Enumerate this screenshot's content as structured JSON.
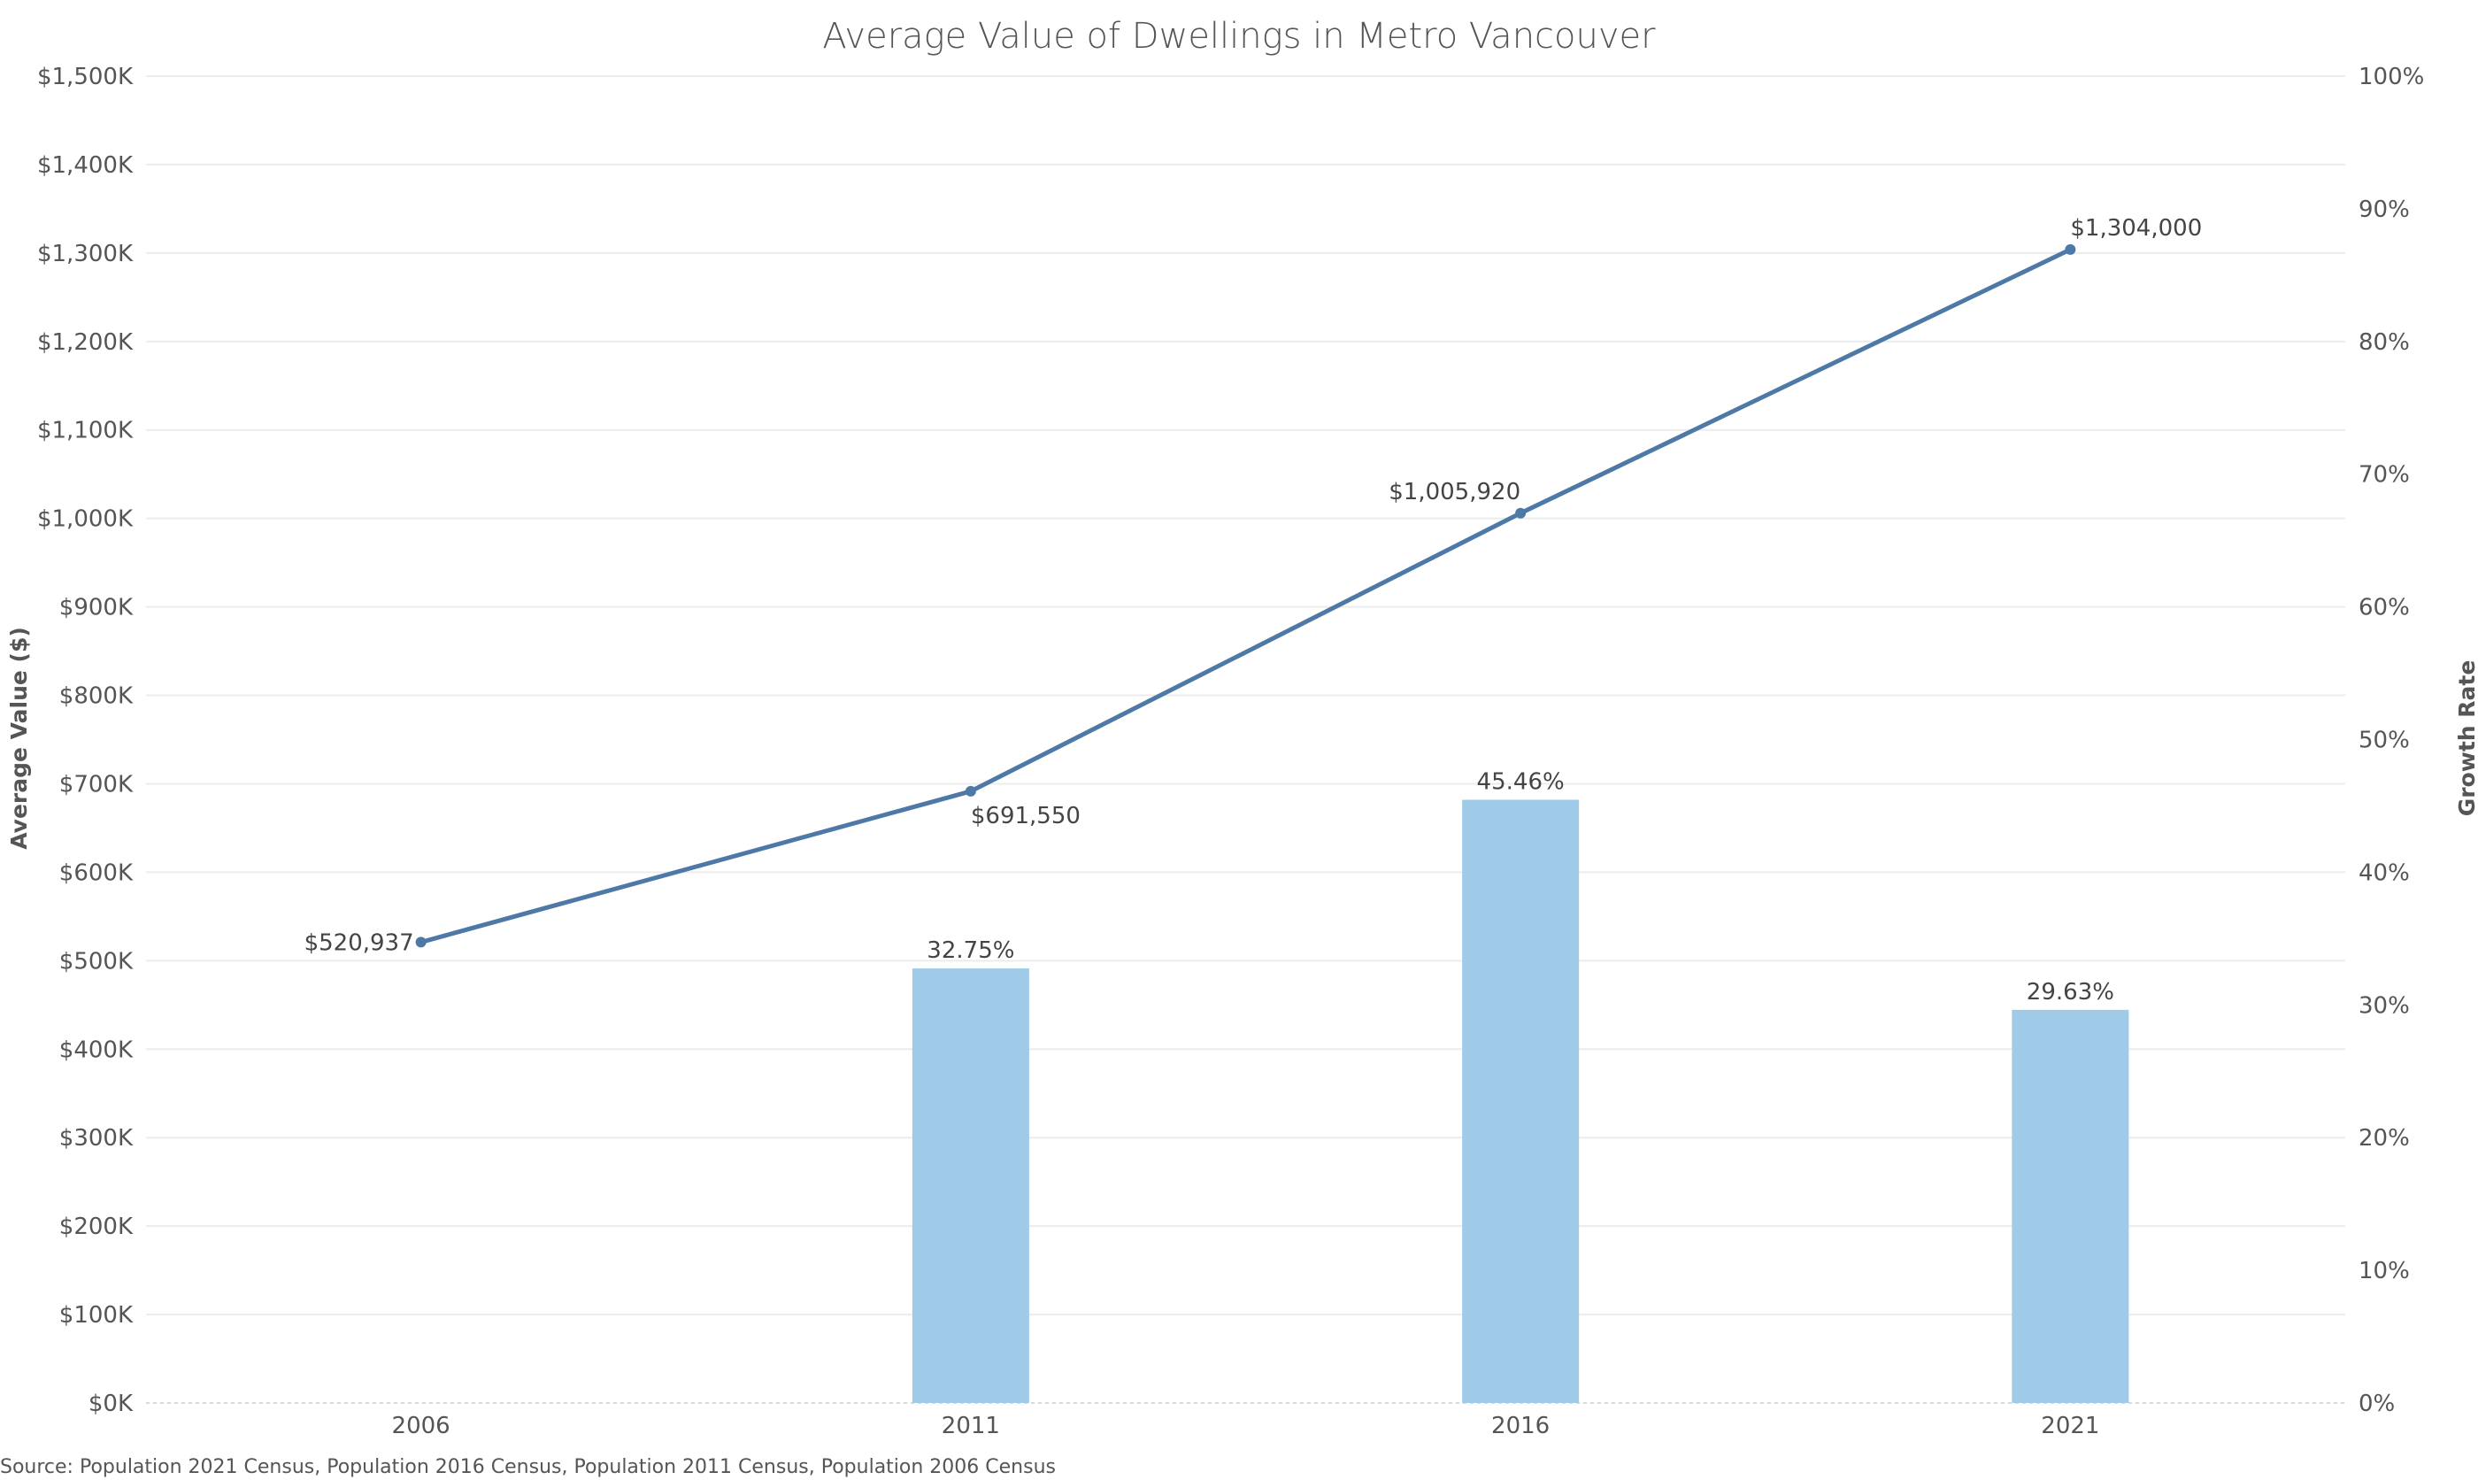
{
  "chart_data": {
    "type": "bar",
    "title": "Average Value of Dwellings in Metro Vancouver",
    "categories": [
      "2006",
      "2011",
      "2016",
      "2021"
    ],
    "y_left": {
      "label": "Average Value ($)",
      "range": [
        0,
        1500000
      ],
      "ticks": [
        0,
        100000,
        200000,
        300000,
        400000,
        500000,
        600000,
        700000,
        800000,
        900000,
        1000000,
        1100000,
        1200000,
        1300000,
        1400000,
        1500000
      ],
      "tick_labels": [
        "$0K",
        "$100K",
        "$200K",
        "$300K",
        "$400K",
        "$500K",
        "$600K",
        "$700K",
        "$800K",
        "$900K",
        "$1,000K",
        "$1,100K",
        "$1,200K",
        "$1,300K",
        "$1,400K",
        "$1,500K"
      ]
    },
    "y_right": {
      "label": "Growth Rate",
      "range": [
        0,
        100
      ],
      "ticks": [
        0,
        10,
        20,
        30,
        40,
        50,
        60,
        70,
        80,
        90,
        100
      ],
      "tick_labels": [
        "0%",
        "10%",
        "20%",
        "30%",
        "40%",
        "50%",
        "60%",
        "70%",
        "80%",
        "90%",
        "100%"
      ]
    },
    "series": [
      {
        "type": "line",
        "axis": "left",
        "color": "#4e79a7",
        "values": [
          520937,
          691550,
          1005920,
          1304000
        ],
        "labels": [
          "$520,937",
          "$691,550",
          "$1,005,920",
          "$1,304,000"
        ],
        "label_positions": [
          "left",
          "below",
          "above",
          "above"
        ]
      },
      {
        "type": "bar",
        "axis": "right",
        "color": "#a0cbe8",
        "values": [
          null,
          32.75,
          45.46,
          29.63
        ],
        "labels": [
          "",
          "32.75%",
          "45.46%",
          "29.63%"
        ]
      }
    ],
    "grid": true,
    "legend": "none"
  },
  "footer": {
    "source": "Source: Population 2021 Census, Population 2016 Census, Population 2011 Census, Population 2006 Census"
  }
}
